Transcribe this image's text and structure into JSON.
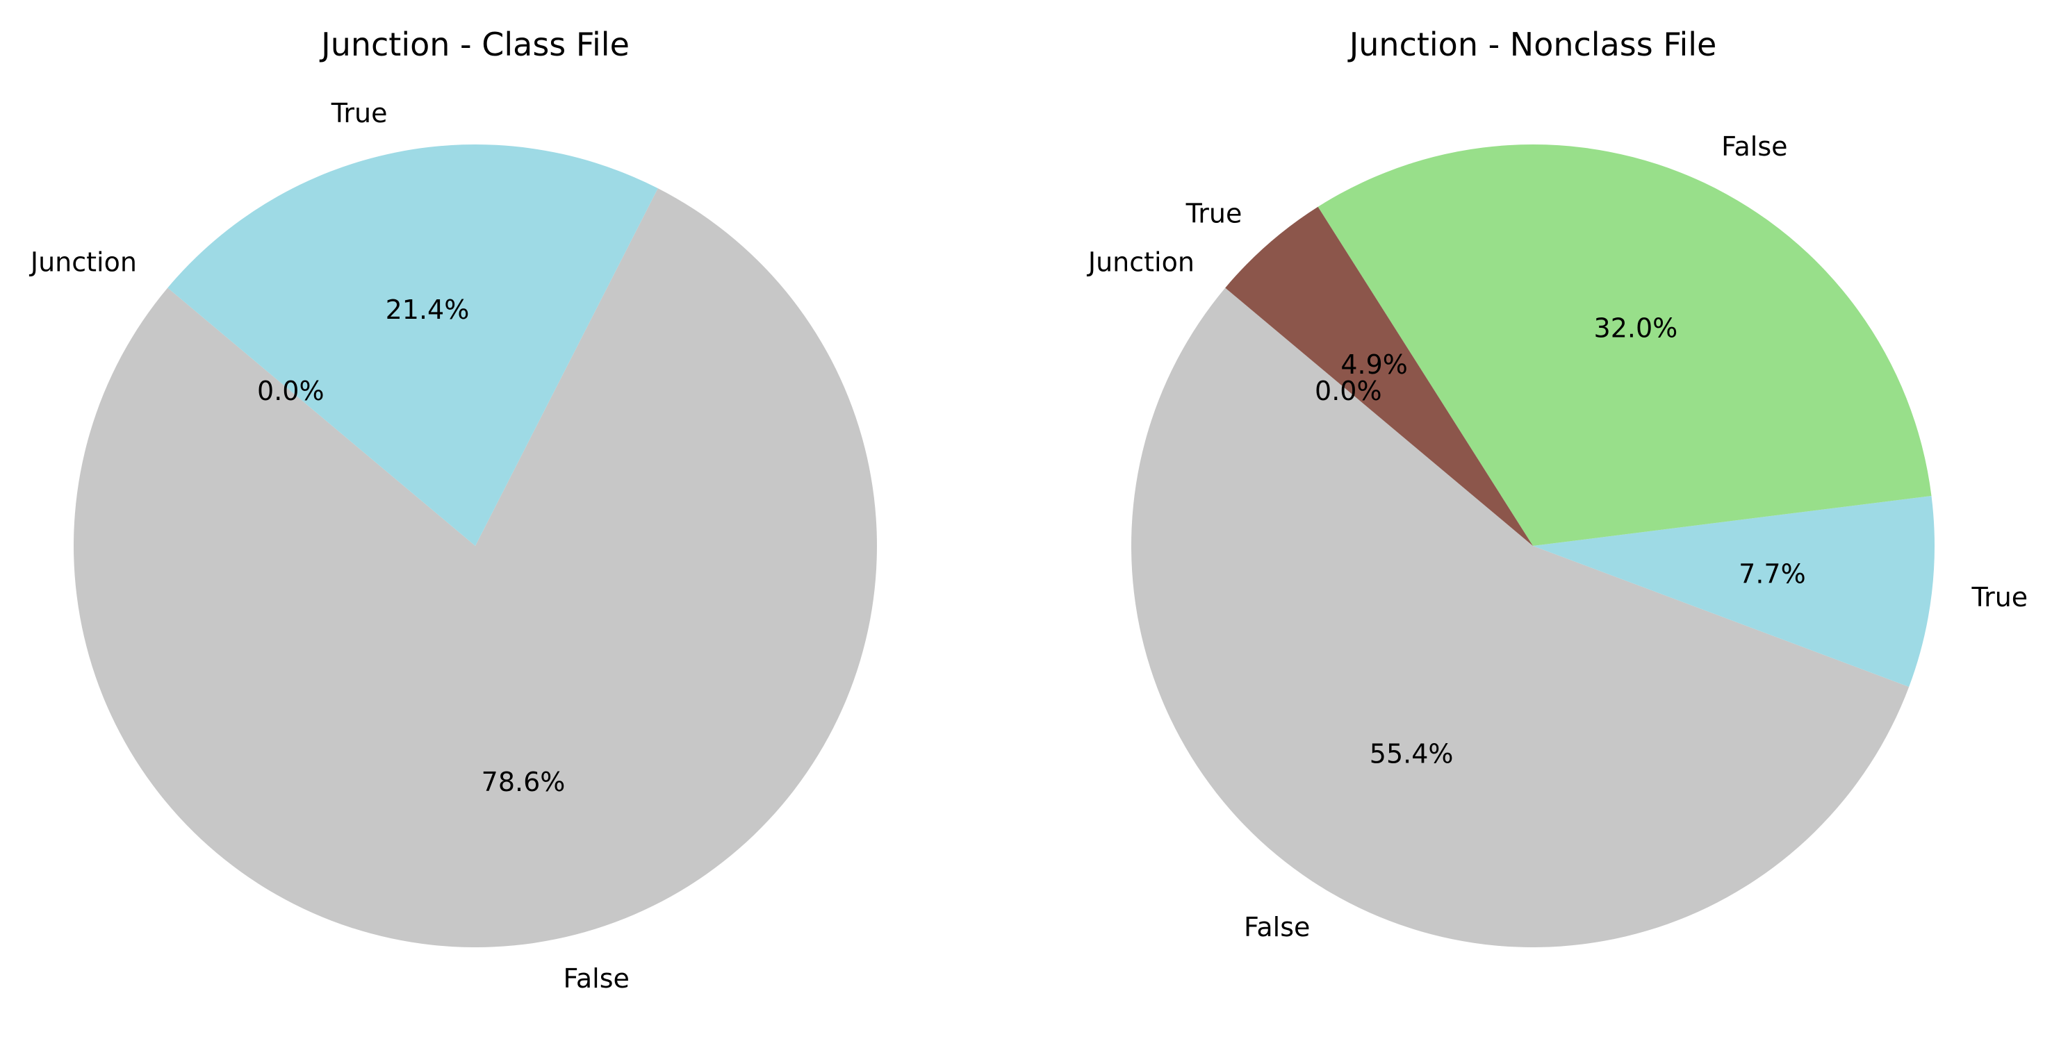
{
  "chart_data": [
    {
      "type": "pie",
      "title": "Junction - Class File",
      "start_angle_deg": 140,
      "direction": "counterclockwise",
      "slices": [
        {
          "label": "Junction",
          "value": 0.0,
          "pct_text": "0.0%",
          "color": "#ffffff"
        },
        {
          "label": "False",
          "value": 78.6,
          "pct_text": "78.6%",
          "color": "#c7c7c7"
        },
        {
          "label": "True",
          "value": 21.4,
          "pct_text": "21.4%",
          "color": "#9edae5"
        }
      ]
    },
    {
      "type": "pie",
      "title": "Junction - Nonclass File",
      "start_angle_deg": 140,
      "direction": "counterclockwise",
      "slices": [
        {
          "label": "Junction",
          "value": 0.0,
          "pct_text": "0.0%",
          "color": "#ffffff"
        },
        {
          "label": "False",
          "value": 55.4,
          "pct_text": "55.4%",
          "color": "#c7c7c7"
        },
        {
          "label": "True",
          "value": 7.7,
          "pct_text": "7.7%",
          "color": "#9edae5"
        },
        {
          "label": "False",
          "value": 32.0,
          "pct_text": "32.0%",
          "color": "#98df8a"
        },
        {
          "label": "True",
          "value": 4.9,
          "pct_text": "4.9%",
          "color": "#8c564b"
        }
      ]
    }
  ]
}
